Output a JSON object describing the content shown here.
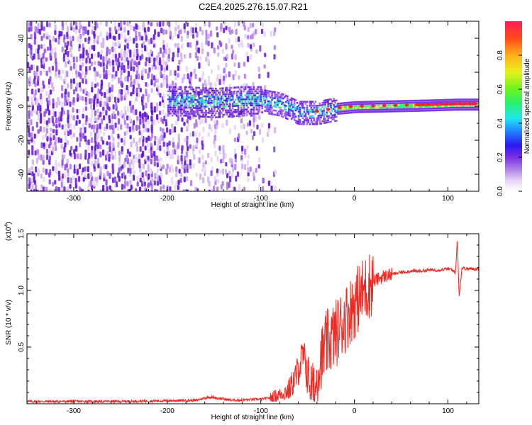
{
  "title": "C2E4.2025.276.15.07.R21",
  "colors": {
    "snr_line": "#ee2a24",
    "frame": "#000000",
    "background": "#ffffff"
  },
  "chart_data": [
    {
      "type": "heatmap",
      "xlabel": "Height of straight line (km)",
      "ylabel": "Frequency (Hz)",
      "xlim": [
        -350,
        133
      ],
      "ylim": [
        -50,
        50
      ],
      "x_ticks": [
        -300,
        -200,
        -100,
        0,
        100
      ],
      "x_tick_labels": [
        "-300",
        "-200",
        "-100",
        "0",
        "100"
      ],
      "y_ticks": [
        -40,
        -20,
        0,
        20,
        40
      ],
      "y_tick_labels": [
        "-40",
        "-20",
        "0",
        "20",
        "40"
      ],
      "colorbar": {
        "label": "Normalized spectral amplitude",
        "range": [
          0,
          1
        ],
        "ticks": [
          0.0,
          0.2,
          0.4,
          0.6,
          0.8
        ],
        "tick_labels": [
          "0.0",
          "0.2",
          "0.4",
          "0.6",
          "0.8"
        ],
        "colormap": "rainbow (violet-blue-cyan-green-yellow-red)"
      },
      "ridge": {
        "description": "spectral ridge near 0 Hz, noisy below -100 km, strong and narrow above 0 km",
        "x": [
          -180,
          -150,
          -120,
          -100,
          -80,
          -60,
          -40,
          -20,
          0,
          40,
          80,
          110,
          133
        ],
        "freq": [
          4,
          3,
          4,
          4,
          2,
          -3,
          -3,
          -1,
          0,
          0.5,
          1,
          1.5,
          1.5
        ]
      }
    },
    {
      "type": "line",
      "xlabel": "Height of straight line (km)",
      "ylabel": "SNR (10 * v/v)",
      "y_scale_label": "(x10",
      "y_scale_exponent": "4",
      "xlim": [
        -350,
        133
      ],
      "ylim": [
        0,
        1.5
      ],
      "x_ticks": [
        -300,
        -200,
        -100,
        0,
        100
      ],
      "x_tick_labels": [
        "-300",
        "-200",
        "-100",
        "0",
        "100"
      ],
      "y_ticks": [
        0.5,
        1.0,
        1.5
      ],
      "y_tick_labels": [
        "0.5",
        "1.0",
        "1.5"
      ],
      "series": [
        {
          "name": "SNR",
          "x": [
            -350,
            -250,
            -170,
            -155,
            -130,
            -100,
            -85,
            -70,
            -62,
            -55,
            -48,
            -42,
            -38,
            -30,
            -20,
            -10,
            0,
            10,
            20,
            30,
            40,
            50,
            60,
            70,
            80,
            90,
            100,
            105,
            108,
            110,
            112,
            115,
            120,
            133
          ],
          "y": [
            0.02,
            0.02,
            0.03,
            0.06,
            0.03,
            0.04,
            0.06,
            0.12,
            0.25,
            0.42,
            0.2,
            0.1,
            0.35,
            0.52,
            0.62,
            0.75,
            0.88,
            1.0,
            1.08,
            1.12,
            1.14,
            1.16,
            1.17,
            1.17,
            1.18,
            1.18,
            1.19,
            1.18,
            1.15,
            1.45,
            0.95,
            1.2,
            1.19,
            1.19
          ]
        }
      ]
    }
  ]
}
